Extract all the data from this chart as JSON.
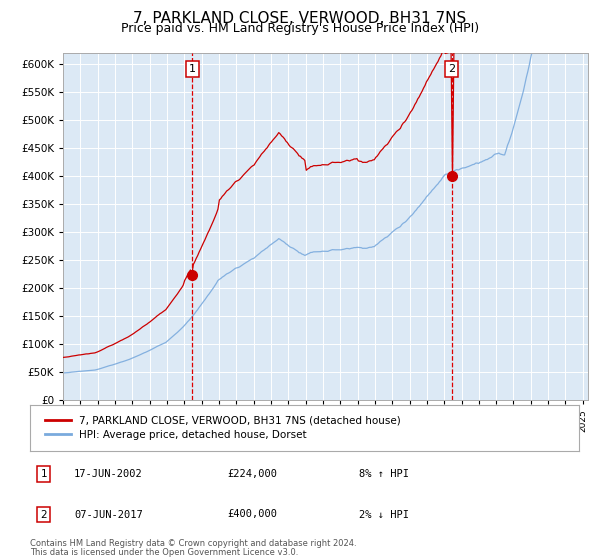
{
  "title": "7, PARKLAND CLOSE, VERWOOD, BH31 7NS",
  "subtitle": "Price paid vs. HM Land Registry's House Price Index (HPI)",
  "title_fontsize": 11,
  "subtitle_fontsize": 9,
  "plot_bg_color": "#dce9f5",
  "fig_bg_color": "#ffffff",
  "red_line_color": "#cc0000",
  "blue_line_color": "#7aaadd",
  "sale1_date_num": 2002.46,
  "sale1_value": 224000,
  "sale2_date_num": 2017.44,
  "sale2_value": 400000,
  "vline_color": "#dd0000",
  "marker_color": "#cc0000",
  "ylim_min": 0,
  "ylim_max": 620000,
  "ytick_step": 50000,
  "legend_entry1": "7, PARKLAND CLOSE, VERWOOD, BH31 7NS (detached house)",
  "legend_entry2": "HPI: Average price, detached house, Dorset",
  "annotation1_date": "17-JUN-2002",
  "annotation1_price": "£224,000",
  "annotation1_hpi": "8% ↑ HPI",
  "annotation2_date": "07-JUN-2017",
  "annotation2_price": "£400,000",
  "annotation2_hpi": "2% ↓ HPI",
  "footnote1": "Contains HM Land Registry data © Crown copyright and database right 2024.",
  "footnote2": "This data is licensed under the Open Government Licence v3.0.",
  "xstart": 1995,
  "xend": 2025
}
